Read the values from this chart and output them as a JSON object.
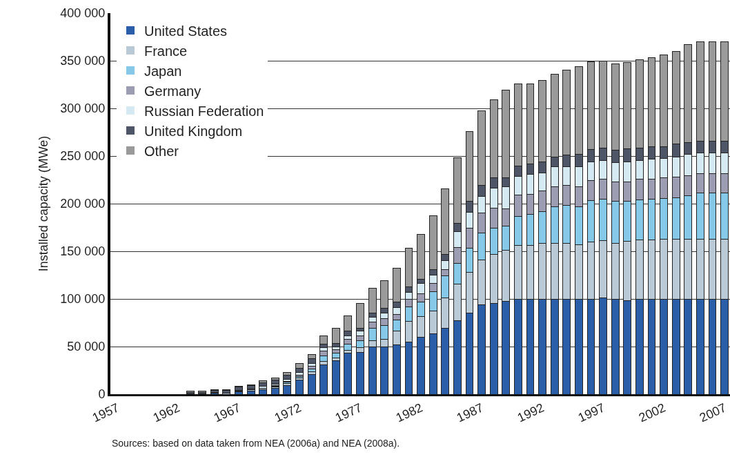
{
  "chart_data": {
    "type": "bar",
    "stacked": true,
    "ylabel": "Installed capacity (MWe)",
    "categories": [
      "1957",
      null,
      null,
      null,
      null,
      "1962",
      null,
      null,
      null,
      null,
      "1967",
      null,
      null,
      null,
      null,
      "1972",
      null,
      null,
      null,
      null,
      "1977",
      null,
      null,
      null,
      null,
      "1982",
      null,
      null,
      null,
      null,
      "1987",
      null,
      null,
      null,
      null,
      "1992",
      null,
      null,
      null,
      null,
      "1997",
      null,
      null,
      null,
      null,
      "2002",
      null,
      null,
      null,
      null,
      "2007"
    ],
    "series": [
      {
        "name": "United States",
        "color": "#2a5ea8",
        "values": [
          0,
          0,
          0,
          0,
          0,
          0,
          500,
          500,
          1000,
          null,
          2500,
          3000,
          4500,
          6000,
          9000,
          14500,
          21000,
          31000,
          35000,
          43000,
          44000,
          49500,
          49500,
          51500,
          55000,
          60000,
          63500,
          69500,
          77500,
          85500,
          93500,
          95000,
          97500,
          100000,
          100000,
          100000,
          100000,
          100000,
          100000,
          100000,
          101000,
          100000,
          98000,
          100000,
          100000,
          100000,
          100000,
          100000,
          100000,
          100000,
          100000
        ]
      },
      {
        "name": "France",
        "color": "#b9cad6",
        "values": [
          0,
          0,
          0,
          0,
          0,
          0,
          0,
          0,
          500,
          1000,
          1000,
          1500,
          1500,
          1500,
          2000,
          2500,
          2500,
          3500,
          3000,
          3000,
          5000,
          6500,
          8000,
          14500,
          21500,
          21500,
          24000,
          31500,
          38000,
          42500,
          47500,
          52000,
          53500,
          56000,
          56500,
          58000,
          58000,
          58000,
          57000,
          59500,
          60500,
          58500,
          62500,
          62000,
          62000,
          62500,
          63000,
          63000,
          63000,
          63000,
          63000
        ]
      },
      {
        "name": "Japan",
        "color": "#86c8e8",
        "values": [
          0,
          0,
          0,
          0,
          0,
          0,
          0,
          0,
          0,
          0,
          0,
          0,
          0,
          1000,
          1500,
          1500,
          3000,
          6000,
          5000,
          6500,
          7000,
          13500,
          14500,
          12000,
          15500,
          15500,
          20000,
          23000,
          21500,
          25500,
          28000,
          27000,
          25500,
          30500,
          32000,
          34000,
          38500,
          40500,
          40000,
          43500,
          43000,
          44000,
          42000,
          42000,
          43000,
          43000,
          43500,
          45500,
          48000,
          48000,
          48000
        ]
      },
      {
        "name": "Germany",
        "color": "#9c9cb2",
        "values": [
          0,
          0,
          0,
          0,
          0,
          0,
          0,
          0,
          0,
          0,
          0,
          0,
          500,
          500,
          1000,
          1500,
          2500,
          5000,
          3500,
          5000,
          5000,
          6000,
          7000,
          6000,
          7500,
          8500,
          9000,
          7000,
          17000,
          20500,
          21000,
          21500,
          18000,
          22500,
          21000,
          21500,
          21000,
          21000,
          21000,
          21500,
          21000,
          20500,
          20500,
          22000,
          21000,
          21500,
          21500,
          21000,
          20500,
          20500,
          20500
        ]
      },
      {
        "name": "Russian Federation",
        "color": "#d5e9f3",
        "values": [
          0,
          0,
          0,
          0,
          0,
          0,
          0,
          0,
          0,
          0,
          500,
          1000,
          1500,
          1500,
          2000,
          2500,
          3000,
          3500,
          3500,
          3500,
          5000,
          5000,
          6000,
          7000,
          7500,
          10500,
          8500,
          9500,
          17000,
          17000,
          17500,
          20500,
          23000,
          19500,
          21000,
          19000,
          21000,
          19500,
          21000,
          19500,
          19500,
          20000,
          21000,
          19500,
          20500,
          20500,
          21000,
          22000,
          22000,
          22000,
          22000
        ]
      },
      {
        "name": "United Kingdom",
        "color": "#4e5566",
        "values": [
          0,
          0,
          0,
          0,
          0,
          0,
          1500,
          1500,
          2500,
          3000,
          3500,
          3500,
          4000,
          4500,
          4500,
          5000,
          5000,
          3500,
          3500,
          5000,
          3500,
          5000,
          5000,
          6000,
          5500,
          5000,
          6000,
          6000,
          8500,
          11500,
          11500,
          11000,
          10000,
          11000,
          11000,
          11500,
          10500,
          12000,
          12500,
          13000,
          13000,
          13000,
          13500,
          13000,
          13000,
          12500,
          14000,
          12500,
          12000,
          12000,
          12000
        ]
      },
      {
        "name": "Other",
        "color": "#9a9a9a",
        "values": [
          0,
          0,
          0,
          0,
          0,
          0,
          1000,
          1000,
          1000,
          1000,
          1000,
          1000,
          2000,
          2000,
          3000,
          4500,
          5000,
          8500,
          16000,
          16000,
          25500,
          25500,
          29500,
          35000,
          40500,
          46500,
          56000,
          69000,
          68500,
          73000,
          78500,
          82000,
          91500,
          86000,
          84500,
          85500,
          87000,
          89000,
          92000,
          92000,
          92000,
          91000,
          91000,
          92500,
          94000,
          96500,
          96500,
          103000,
          104500,
          104500,
          104500
        ]
      }
    ],
    "ylim": [
      0,
      400000
    ],
    "yticks": [
      0,
      {
        "value": 50000,
        "label": "50 000"
      },
      {
        "value": 100000,
        "label": "100 000"
      },
      {
        "value": 150000,
        "label": "150 000"
      },
      {
        "value": 200000,
        "label": "200 000"
      },
      {
        "value": 250000,
        "label": "250 000"
      },
      {
        "value": 300000,
        "label": "300 000"
      },
      {
        "value": 350000,
        "label": "350 000"
      },
      {
        "value": 400000,
        "label": "400 000"
      }
    ],
    "grid": "y",
    "legend": "top left",
    "annotations": [
      "Sources: based on data taken from NEA (2006a) and NEA (2008a)."
    ]
  }
}
